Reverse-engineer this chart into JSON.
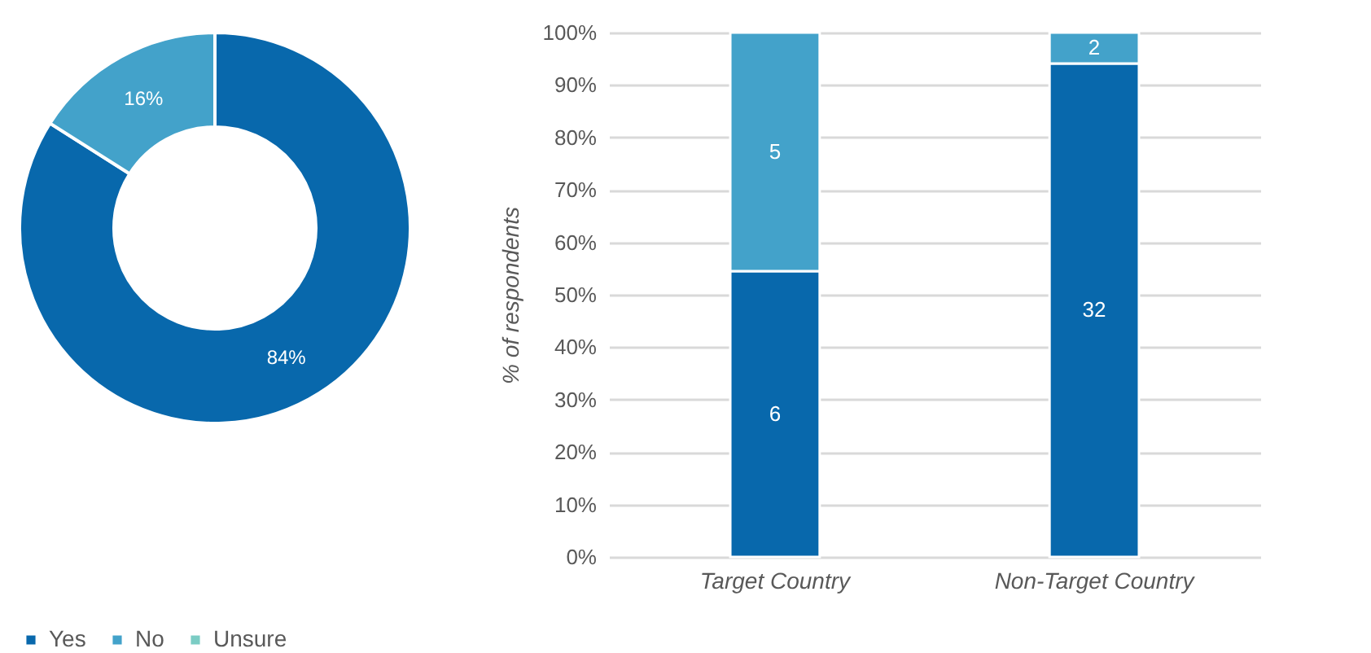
{
  "chart_data": [
    {
      "type": "donut",
      "categories": [
        "Yes",
        "No",
        "Unsure"
      ],
      "values": [
        84,
        16,
        0
      ],
      "colors": [
        "#0868ac",
        "#43a2ca",
        "#7bccc4"
      ],
      "value_labels": [
        "84%",
        "16%",
        null
      ],
      "legend": "bottom"
    },
    {
      "type": "bar",
      "stacked": true,
      "categories": [
        "Target Country",
        "Non-Target Country"
      ],
      "ylabel": "% of respondents",
      "ylim": [
        0,
        100
      ],
      "yticks": [
        {
          "value": 0,
          "label": "0%"
        },
        {
          "value": 10,
          "label": "10%"
        },
        {
          "value": 20,
          "label": "20%"
        },
        {
          "value": 30,
          "label": "30%"
        },
        {
          "value": 40,
          "label": "40%"
        },
        {
          "value": 50,
          "label": "50%"
        },
        {
          "value": 60,
          "label": "60%"
        },
        {
          "value": 70,
          "label": "70%"
        },
        {
          "value": 80,
          "label": "80%"
        },
        {
          "value": 90,
          "label": "90%"
        },
        {
          "value": 100,
          "label": "100%"
        }
      ],
      "grid": "y",
      "series": [
        {
          "color": "#0868ac",
          "values": [
            54.5,
            94.1
          ]
        },
        {
          "color": "#43a2ca",
          "values": [
            45.5,
            5.9
          ]
        }
      ],
      "annotations": [
        "6",
        "32",
        "5",
        "2"
      ]
    }
  ]
}
